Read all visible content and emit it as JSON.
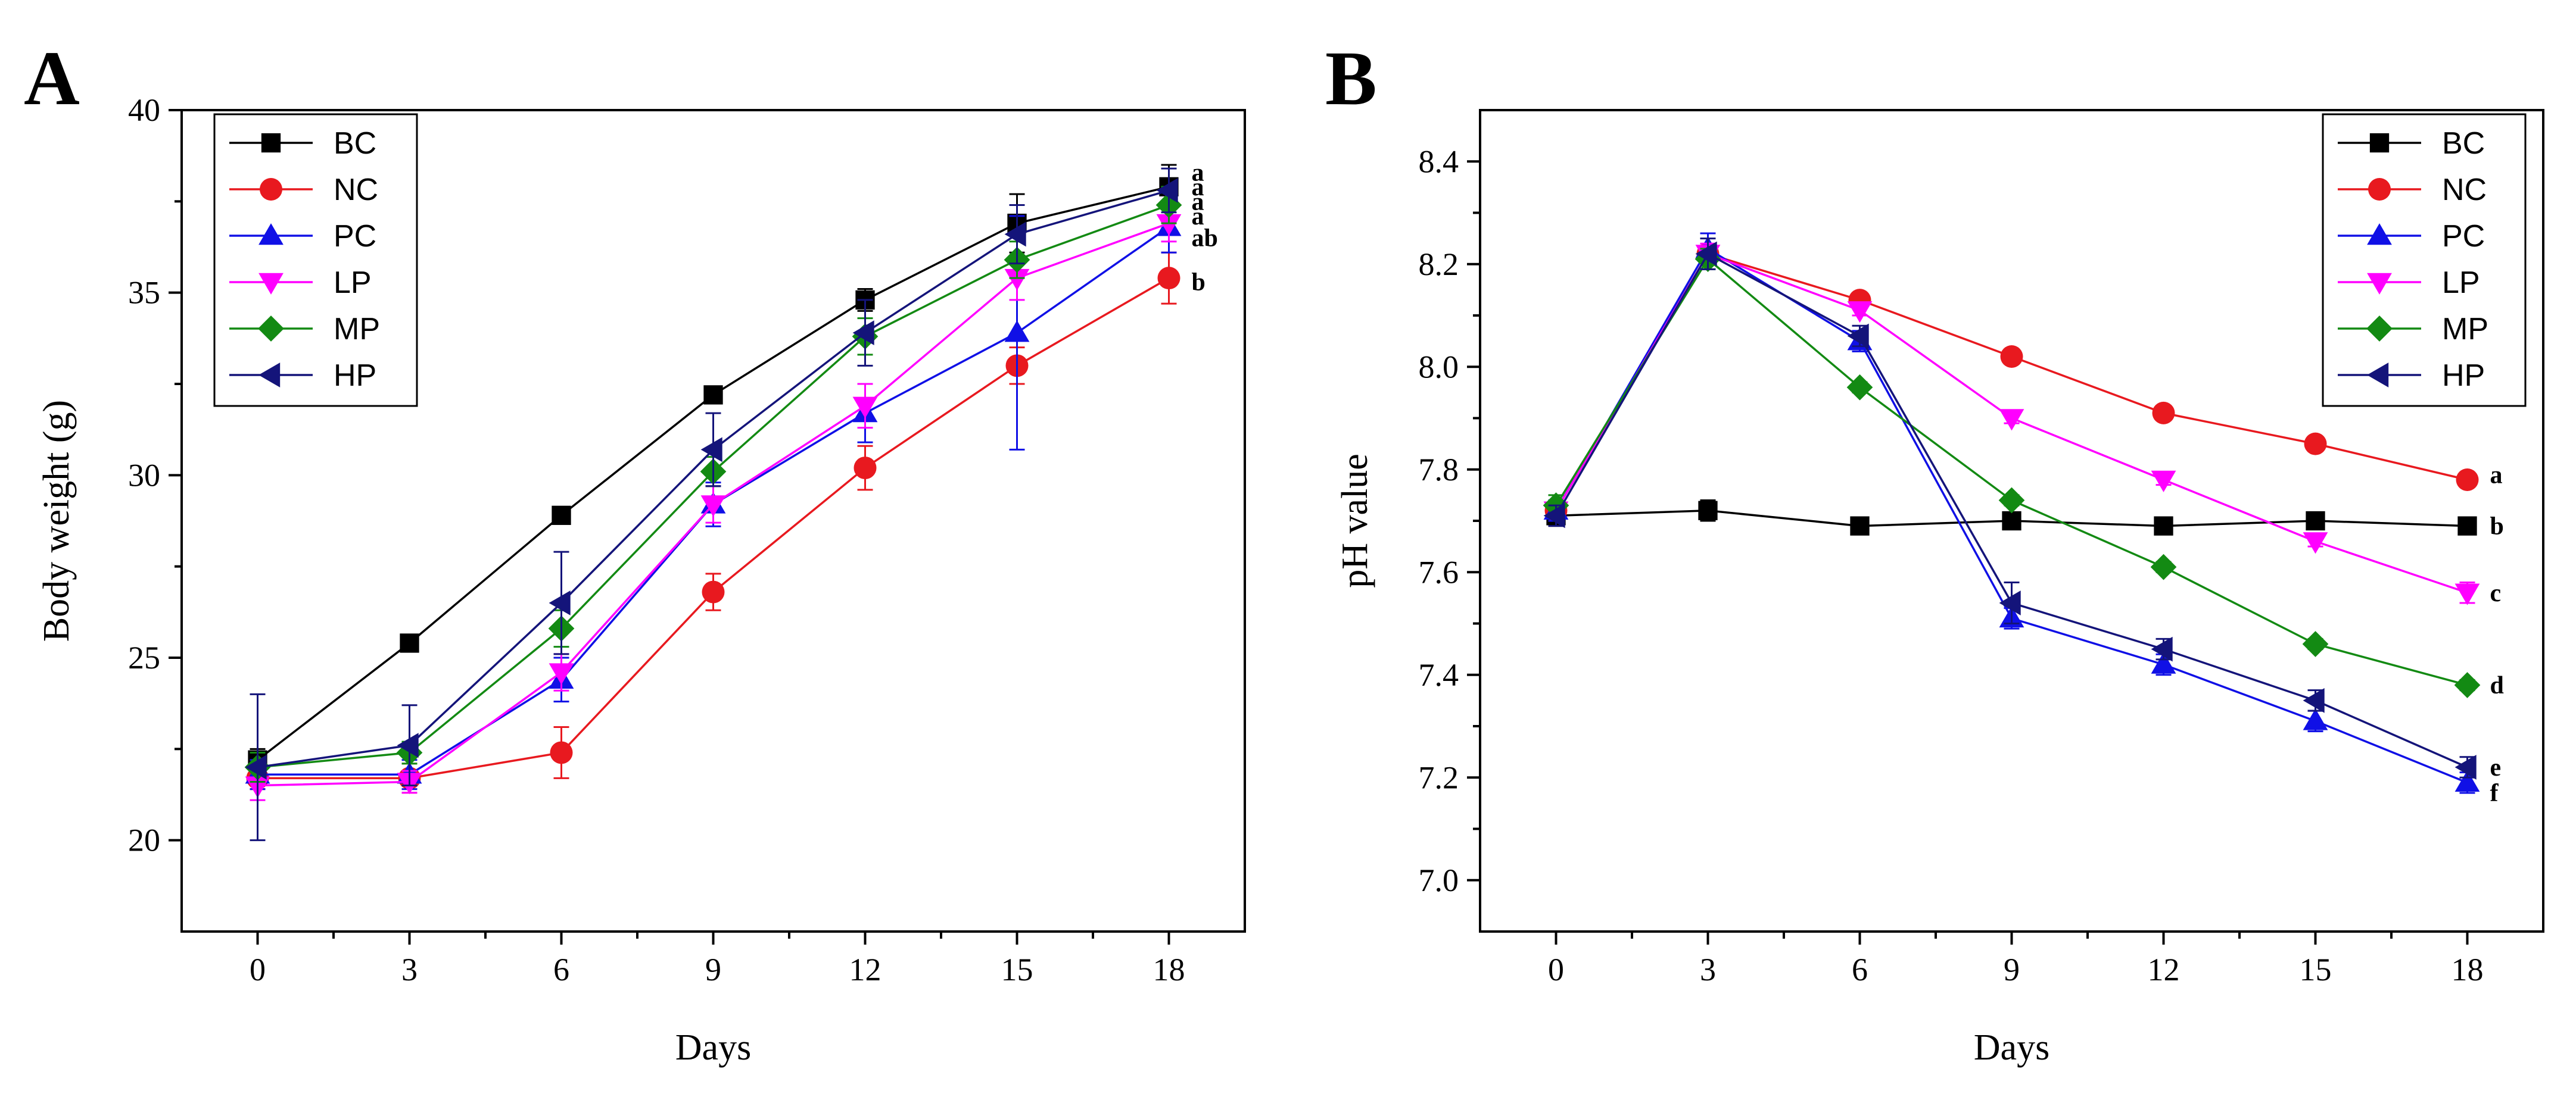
{
  "chart_data": [
    {
      "type": "line",
      "panel_label": "A",
      "xlabel": "Days",
      "ylabel": "Body weight (g)",
      "x": [
        0,
        3,
        6,
        9,
        12,
        15,
        18
      ],
      "xlim": [
        -1.5,
        19.5
      ],
      "ylim": [
        17.5,
        40
      ],
      "yticks": [
        20,
        25,
        30,
        35,
        40
      ],
      "legend_position": "top-left",
      "series": [
        {
          "name": "BC",
          "color": "#000000",
          "marker": "square",
          "values": [
            22.2,
            25.4,
            28.9,
            32.2,
            34.8,
            36.9,
            37.9
          ],
          "errors": [
            0.3,
            0.2,
            0.2,
            0.2,
            0.3,
            0.8,
            0.6
          ]
        },
        {
          "name": "NC",
          "color": "#e8191f",
          "marker": "circle",
          "values": [
            21.7,
            21.7,
            22.4,
            26.8,
            30.2,
            33.0,
            35.4
          ],
          "errors": [
            0.3,
            0.4,
            0.7,
            0.5,
            0.6,
            0.5,
            0.7
          ]
        },
        {
          "name": "PC",
          "color": "#1010e6",
          "marker": "triangle-up",
          "values": [
            21.8,
            21.8,
            24.4,
            29.2,
            31.7,
            33.9,
            36.8
          ],
          "errors": [
            0.4,
            0.4,
            0.6,
            0.6,
            0.8,
            3.2,
            0.7
          ]
        },
        {
          "name": "LP",
          "color": "#ff00ff",
          "marker": "triangle-down",
          "values": [
            21.5,
            21.6,
            24.6,
            29.2,
            31.9,
            35.4,
            36.9
          ],
          "errors": [
            0.4,
            0.3,
            0.5,
            0.5,
            0.6,
            0.6,
            0.5
          ]
        },
        {
          "name": "MP",
          "color": "#138a13",
          "marker": "diamond",
          "values": [
            22.0,
            22.4,
            25.8,
            30.1,
            33.8,
            35.9,
            37.4
          ],
          "errors": [
            0.4,
            0.3,
            0.5,
            0.4,
            0.5,
            0.5,
            0.5
          ]
        },
        {
          "name": "HP",
          "color": "#14147a",
          "marker": "triangle-left",
          "values": [
            22.0,
            22.6,
            26.5,
            30.7,
            33.9,
            36.6,
            37.8
          ],
          "errors": [
            2.0,
            1.1,
            1.4,
            1.0,
            0.9,
            0.8,
            0.6
          ]
        }
      ],
      "significance": [
        {
          "label": "a",
          "y": 38.3
        },
        {
          "label": "a",
          "y": 37.9
        },
        {
          "label": "a",
          "y": 37.5
        },
        {
          "label": "a",
          "y": 37.1
        },
        {
          "label": "ab",
          "y": 36.5
        },
        {
          "label": "b",
          "y": 35.3
        }
      ]
    },
    {
      "type": "line",
      "panel_label": "B",
      "xlabel": "Days",
      "ylabel": "pH value",
      "x": [
        0,
        3,
        6,
        9,
        12,
        15,
        18
      ],
      "xlim": [
        -1.5,
        19.5
      ],
      "ylim": [
        6.9,
        8.5
      ],
      "yticks": [
        7.0,
        7.2,
        7.4,
        7.6,
        7.8,
        8.0,
        8.2,
        8.4
      ],
      "legend_position": "top-right",
      "series": [
        {
          "name": "BC",
          "color": "#000000",
          "marker": "square",
          "values": [
            7.71,
            7.72,
            7.69,
            7.7,
            7.69,
            7.7,
            7.69
          ],
          "errors": [
            0.02,
            0.02,
            0.01,
            0.01,
            0.01,
            0.01,
            0.01
          ]
        },
        {
          "name": "NC",
          "color": "#e8191f",
          "marker": "circle",
          "values": [
            7.72,
            8.22,
            8.13,
            8.02,
            7.91,
            7.85,
            7.78
          ],
          "errors": [
            0.01,
            0.01,
            0.01,
            0.01,
            0.01,
            0.01,
            0.01
          ]
        },
        {
          "name": "PC",
          "color": "#1010e6",
          "marker": "triangle-up",
          "values": [
            7.72,
            8.23,
            8.05,
            7.51,
            7.42,
            7.31,
            7.19
          ],
          "errors": [
            0.02,
            0.03,
            0.02,
            0.02,
            0.02,
            0.02,
            0.02
          ]
        },
        {
          "name": "LP",
          "color": "#ff00ff",
          "marker": "triangle-down",
          "values": [
            7.72,
            8.22,
            8.11,
            7.9,
            7.78,
            7.66,
            7.56
          ],
          "errors": [
            0.01,
            0.02,
            0.01,
            0.01,
            0.01,
            0.01,
            0.02
          ]
        },
        {
          "name": "MP",
          "color": "#138a13",
          "marker": "diamond",
          "values": [
            7.73,
            8.21,
            7.96,
            7.74,
            7.61,
            7.46,
            7.38
          ],
          "errors": [
            0.02,
            0.02,
            0.01,
            0.01,
            0.01,
            0.01,
            0.01
          ]
        },
        {
          "name": "HP",
          "color": "#14147a",
          "marker": "triangle-left",
          "values": [
            7.71,
            8.22,
            8.06,
            7.54,
            7.45,
            7.35,
            7.22
          ],
          "errors": [
            0.02,
            0.03,
            0.02,
            0.04,
            0.02,
            0.02,
            0.02
          ]
        }
      ],
      "significance": [
        {
          "label": "a",
          "y": 7.79
        },
        {
          "label": "b",
          "y": 7.69
        },
        {
          "label": "c",
          "y": 7.56
        },
        {
          "label": "d",
          "y": 7.38
        },
        {
          "label": "e",
          "y": 7.22
        },
        {
          "label": "f",
          "y": 7.17
        }
      ]
    }
  ]
}
